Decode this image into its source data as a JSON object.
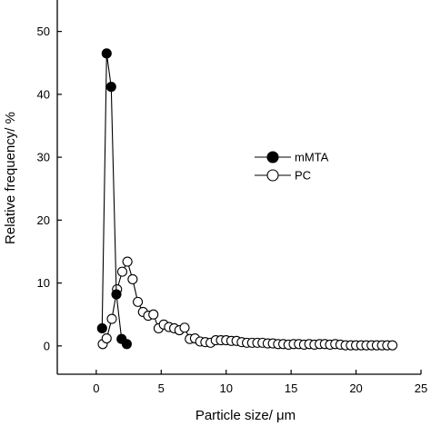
{
  "chart_data": {
    "type": "line",
    "xlabel": "Particle size/ μm",
    "ylabel": "Relative frequency/ %",
    "xlim": [
      -3,
      25
    ],
    "ylim": [
      -4.5,
      55
    ],
    "xticks": [
      0,
      5,
      10,
      15,
      20,
      25
    ],
    "yticks": [
      0,
      10,
      20,
      30,
      40,
      50
    ],
    "xtick_labels": [
      "0",
      "5",
      "10",
      "15",
      "20",
      "25"
    ],
    "ytick_labels": [
      "0",
      "10",
      "20",
      "30",
      "40",
      "50"
    ],
    "legend_position": "right-middle",
    "grid": false,
    "series": [
      {
        "name": "mMTA",
        "marker": "filled-circle",
        "color": "#000000",
        "x": [
          0.45,
          0.8,
          1.15,
          1.55,
          1.95,
          2.35
        ],
        "y": [
          2.8,
          46.5,
          41.2,
          8.2,
          1.1,
          0.3
        ]
      },
      {
        "name": "PC",
        "marker": "open-circle",
        "color": "#000000",
        "x": [
          0.5,
          0.8,
          1.2,
          1.6,
          2.0,
          2.4,
          2.8,
          3.2,
          3.6,
          4.0,
          4.4,
          4.8,
          5.2,
          5.6,
          6.0,
          6.4,
          6.8,
          7.2,
          7.6,
          8.0,
          8.4,
          8.8,
          9.2,
          9.6,
          10.0,
          10.4,
          10.8,
          11.2,
          11.6,
          12.0,
          12.4,
          12.8,
          13.2,
          13.6,
          14.0,
          14.4,
          14.8,
          15.2,
          15.6,
          16.0,
          16.4,
          16.8,
          17.2,
          17.6,
          18.0,
          18.4,
          18.8,
          19.2,
          19.6,
          20.0,
          20.4,
          20.8,
          21.2,
          21.6,
          22.0,
          22.4,
          22.8
        ],
        "y": [
          0.3,
          1.2,
          4.3,
          9.0,
          11.8,
          13.4,
          10.6,
          7.0,
          5.4,
          4.8,
          5.0,
          2.8,
          3.4,
          3.0,
          2.8,
          2.5,
          2.9,
          1.1,
          1.2,
          0.7,
          0.6,
          0.5,
          0.9,
          0.9,
          0.9,
          0.8,
          0.8,
          0.6,
          0.5,
          0.5,
          0.5,
          0.5,
          0.4,
          0.4,
          0.3,
          0.3,
          0.2,
          0.3,
          0.3,
          0.2,
          0.3,
          0.2,
          0.3,
          0.3,
          0.2,
          0.3,
          0.2,
          0.1,
          0.1,
          0.1,
          0.1,
          0.1,
          0.1,
          0.1,
          0.1,
          0.1,
          0.1
        ]
      }
    ]
  }
}
